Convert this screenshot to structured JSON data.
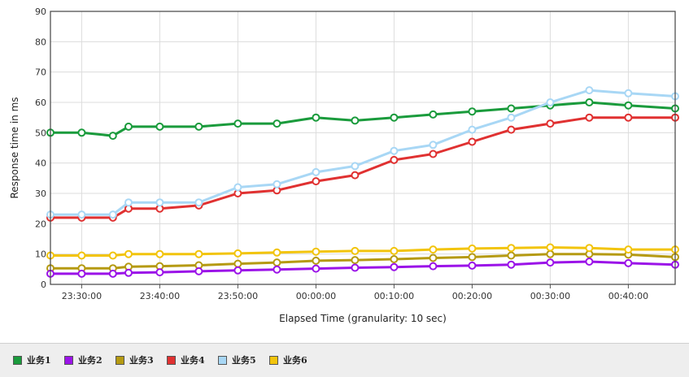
{
  "chart_data": {
    "type": "line",
    "title": "",
    "xlabel": "Elapsed Time (granularity: 10 sec)",
    "ylabel": "Response time in ms",
    "ylim": [
      0,
      90
    ],
    "yticks": [
      0,
      10,
      20,
      30,
      40,
      50,
      60,
      70,
      80,
      90
    ],
    "xlim": [
      "23:26:00",
      "00:46:00"
    ],
    "xticks": [
      "23:30:00",
      "23:40:00",
      "23:50:00",
      "00:00:00",
      "00:10:00",
      "00:20:00",
      "00:30:00",
      "00:40:00"
    ],
    "grid": true,
    "legend_position": "bottom-left",
    "series": [
      {
        "name": "业务1",
        "color": "#1a9b3c",
        "x": [
          "23:26:00",
          "23:30:00",
          "23:34:00",
          "23:36:00",
          "23:40:00",
          "23:45:00",
          "23:50:00",
          "23:55:00",
          "00:00:00",
          "00:05:00",
          "00:10:00",
          "00:15:00",
          "00:20:00",
          "00:25:00",
          "00:30:00",
          "00:35:00",
          "00:40:00",
          "00:46:00"
        ],
        "values": [
          50,
          50,
          49,
          52,
          52,
          52,
          53,
          53,
          55,
          54,
          55,
          56,
          57,
          58,
          59,
          60,
          59,
          58
        ]
      },
      {
        "name": "业务2",
        "color": "#9b13e8",
        "x": [
          "23:26:00",
          "23:30:00",
          "23:34:00",
          "23:36:00",
          "23:40:00",
          "23:45:00",
          "23:50:00",
          "23:55:00",
          "00:00:00",
          "00:05:00",
          "00:10:00",
          "00:15:00",
          "00:20:00",
          "00:25:00",
          "00:30:00",
          "00:35:00",
          "00:40:00",
          "00:46:00"
        ],
        "values": [
          3.5,
          3.5,
          3.5,
          3.8,
          4.0,
          4.3,
          4.6,
          4.9,
          5.2,
          5.5,
          5.7,
          6.0,
          6.2,
          6.5,
          7.2,
          7.5,
          7.0,
          6.5
        ]
      },
      {
        "name": "业务3",
        "color": "#b59a12",
        "x": [
          "23:26:00",
          "23:30:00",
          "23:34:00",
          "23:36:00",
          "23:40:00",
          "23:45:00",
          "23:50:00",
          "23:55:00",
          "00:00:00",
          "00:05:00",
          "00:10:00",
          "00:15:00",
          "00:20:00",
          "00:25:00",
          "00:30:00",
          "00:35:00",
          "00:40:00",
          "00:46:00"
        ],
        "values": [
          5.3,
          5.3,
          5.3,
          5.8,
          6.0,
          6.3,
          6.8,
          7.2,
          7.8,
          8.0,
          8.3,
          8.7,
          9.0,
          9.5,
          10.0,
          10.0,
          9.8,
          9.0
        ]
      },
      {
        "name": "业务4",
        "color": "#e03131",
        "x": [
          "23:26:00",
          "23:30:00",
          "23:34:00",
          "23:36:00",
          "23:40:00",
          "23:45:00",
          "23:50:00",
          "23:55:00",
          "00:00:00",
          "00:05:00",
          "00:10:00",
          "00:15:00",
          "00:20:00",
          "00:25:00",
          "00:30:00",
          "00:35:00",
          "00:40:00",
          "00:46:00"
        ],
        "values": [
          22,
          22,
          22,
          25,
          25,
          26,
          30,
          31,
          34,
          36,
          41,
          43,
          47,
          51,
          53,
          55,
          55,
          55
        ]
      },
      {
        "name": "业务5",
        "color": "#a8d7f5",
        "x": [
          "23:26:00",
          "23:30:00",
          "23:34:00",
          "23:36:00",
          "23:40:00",
          "23:45:00",
          "23:50:00",
          "23:55:00",
          "00:00:00",
          "00:05:00",
          "00:10:00",
          "00:15:00",
          "00:20:00",
          "00:25:00",
          "00:30:00",
          "00:35:00",
          "00:40:00",
          "00:46:00"
        ],
        "values": [
          23,
          23,
          23,
          27,
          27,
          27,
          32,
          33,
          37,
          39,
          44,
          46,
          51,
          55,
          60,
          64,
          63,
          62
        ]
      },
      {
        "name": "业务6",
        "color": "#f2c40c",
        "x": [
          "23:26:00",
          "23:30:00",
          "23:34:00",
          "23:36:00",
          "23:40:00",
          "23:45:00",
          "23:50:00",
          "23:55:00",
          "00:00:00",
          "00:05:00",
          "00:10:00",
          "00:15:00",
          "00:20:00",
          "00:25:00",
          "00:30:00",
          "00:35:00",
          "00:40:00",
          "00:46:00"
        ],
        "values": [
          9.5,
          9.5,
          9.5,
          10.0,
          10.0,
          10.0,
          10.2,
          10.5,
          10.8,
          11.0,
          11.0,
          11.5,
          11.8,
          12.0,
          12.2,
          12.0,
          11.5,
          11.5
        ]
      }
    ]
  }
}
